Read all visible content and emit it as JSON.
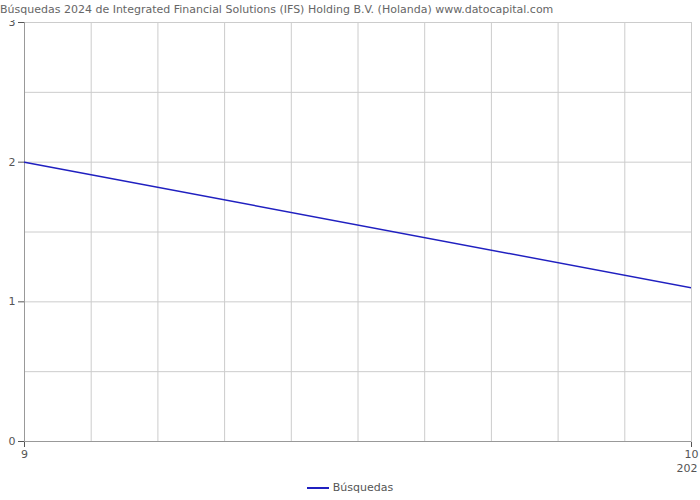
{
  "chart_data": {
    "type": "line",
    "title": "Búsquedas 2024 de Integrated Financial Solutions (IFS) Holding B.V. (Holanda) www.datocapital.com",
    "x_label": "202",
    "x": [
      9,
      10
    ],
    "series": [
      {
        "name": "Búsquedas",
        "color": "#2020c0",
        "values": [
          2,
          1.1
        ]
      }
    ],
    "xlim": [
      9,
      10
    ],
    "xticks": [
      9,
      10
    ],
    "ylim": [
      0,
      3
    ],
    "yticks": [
      0,
      1,
      2,
      3
    ],
    "grid": true
  }
}
